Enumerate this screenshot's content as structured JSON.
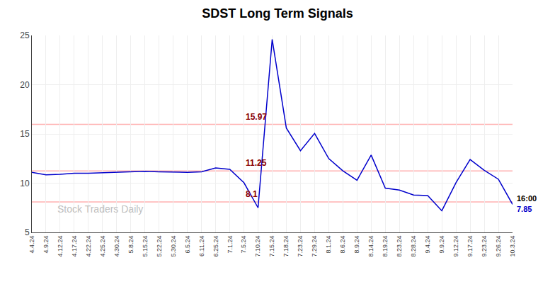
{
  "chart_data": {
    "type": "line",
    "title": "SDST Long Term Signals",
    "categories": [
      "4.4.24",
      "4.9.24",
      "4.12.24",
      "4.17.24",
      "4.22.24",
      "4.25.24",
      "4.30.24",
      "5.8.24",
      "5.15.24",
      "5.22.24",
      "5.30.24",
      "6.5.24",
      "6.11.24",
      "6.25.24",
      "7.1.24",
      "7.5.24",
      "7.10.24",
      "7.15.24",
      "7.18.24",
      "7.23.24",
      "7.29.24",
      "8.1.24",
      "8.6.24",
      "8.9.24",
      "8.14.24",
      "8.19.24",
      "8.23.24",
      "8.28.24",
      "9.4.24",
      "9.9.24",
      "9.12.24",
      "9.17.24",
      "9.23.24",
      "9.26.24",
      "10.3.24"
    ],
    "values": [
      11.1,
      10.85,
      10.9,
      11.0,
      11.0,
      11.05,
      11.05,
      11.15,
      11.2,
      11.15,
      11.1,
      11.1,
      11.15,
      11.55,
      11.4,
      10.05,
      7.5,
      24.6,
      15.6,
      13.3,
      15.05,
      12.5,
      11.25,
      10.3,
      12.85,
      9.5,
      9.3,
      8.8,
      8.75,
      7.2,
      10.05,
      12.4,
      11.3,
      10.4,
      7.85
    ],
    "color": "#0000cc",
    "ylim": [
      5,
      25
    ],
    "yticks": [
      5,
      10,
      15,
      20,
      25
    ],
    "grid": true,
    "hlines": [
      {
        "value": 15.97,
        "label": "15.97"
      },
      {
        "value": 11.25,
        "label": "11.25"
      },
      {
        "value": 8.1,
        "label": "8.1"
      }
    ],
    "hline_color": "#ffb0b0",
    "annotation_color": "#8b0000",
    "end_label": {
      "time": "16:00",
      "value": "7.85"
    },
    "watermark": "Stock Traders Daily",
    "watermark_color": "#c0c0c0"
  }
}
